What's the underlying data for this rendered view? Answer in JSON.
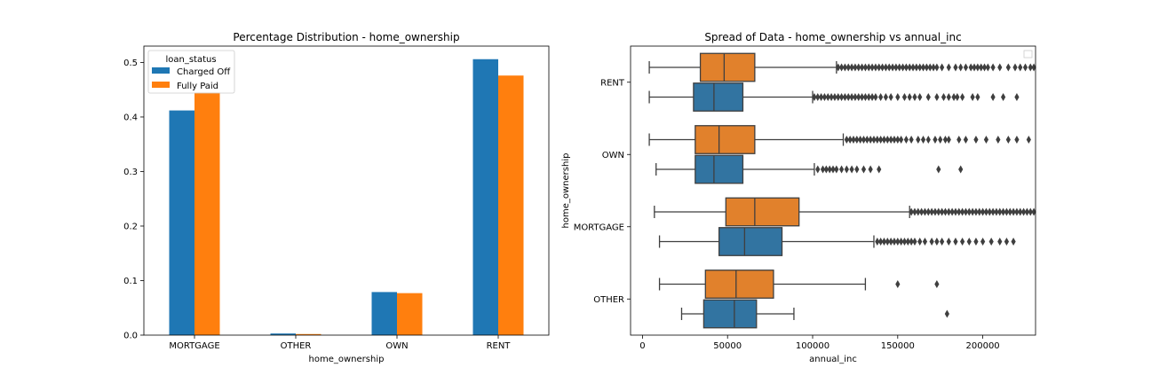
{
  "colors": {
    "charged_off": "#1f77b4",
    "fully_paid": "#ff7f0e",
    "box_charged_off": "#3274a1",
    "box_fully_paid": "#e1812c",
    "box_line": "#3f3f3f",
    "axes": "#000000"
  },
  "chart_data": [
    {
      "type": "bar",
      "title": "Percentage Distribution - home_ownership",
      "xlabel": "home_ownership",
      "ylabel": "",
      "ylim": [
        0,
        0.53
      ],
      "yticks": [
        0.0,
        0.1,
        0.2,
        0.3,
        0.4,
        0.5
      ],
      "ytick_labels": [
        "0.0",
        "0.1",
        "0.2",
        "0.3",
        "0.4",
        "0.5"
      ],
      "categories": [
        "MORTGAGE",
        "OTHER",
        "OWN",
        "RENT"
      ],
      "legend": {
        "title": "loan_status",
        "placement": "upper left"
      },
      "grid": false,
      "series": [
        {
          "name": "Charged Off",
          "color": "#1f77b4",
          "values": [
            0.412,
            0.003,
            0.079,
            0.506
          ]
        },
        {
          "name": "Fully Paid",
          "color": "#ff7f0e",
          "values": [
            0.445,
            0.002,
            0.077,
            0.476
          ]
        }
      ]
    },
    {
      "type": "box",
      "title": "Spread of Data - home_ownership vs annual_inc",
      "xlabel": "annual_inc",
      "ylabel": "home_ownership",
      "xlim": [
        -7000,
        231000
      ],
      "xticks": [
        0,
        50000,
        100000,
        150000,
        200000
      ],
      "xtick_labels": [
        "0",
        "50000",
        "100000",
        "150000",
        "200000"
      ],
      "categories": [
        "RENT",
        "OWN",
        "MORTGAGE",
        "OTHER"
      ],
      "legend": {
        "placement": "upper right",
        "entries": []
      },
      "grid": false,
      "series": [
        {
          "name": "Fully Paid",
          "color": "#e1812c",
          "boxes": [
            {
              "category": "RENT",
              "whisker_low": 4000,
              "q1": 34000,
              "median": 48000,
              "q3": 66000,
              "whisker_high": 114000,
              "outliers": [
                115000,
                117000,
                119000,
                121000,
                123000,
                125000,
                127000,
                129000,
                131000,
                133000,
                135000,
                137000,
                139000,
                141000,
                143000,
                145000,
                147000,
                149000,
                151000,
                153000,
                155000,
                157000,
                159000,
                161000,
                163000,
                165000,
                167000,
                169000,
                171000,
                173000,
                176000,
                180000,
                184000,
                187000,
                190000,
                193000,
                195000,
                197000,
                199000,
                201000,
                203000,
                206000,
                210000,
                215000,
                219000,
                222000,
                225000,
                228000,
                230000
              ]
            },
            {
              "category": "OWN",
              "whisker_low": 4000,
              "q1": 31000,
              "median": 45000,
              "q3": 66000,
              "whisker_high": 118000,
              "outliers": [
                120000,
                122000,
                124000,
                126000,
                128000,
                130000,
                132000,
                134000,
                136000,
                138000,
                140000,
                142000,
                144000,
                146000,
                148000,
                150000,
                152000,
                155000,
                158000,
                162000,
                165000,
                168000,
                172000,
                175000,
                178000,
                180000,
                186000,
                190000,
                196000,
                202000,
                209000,
                215000,
                220000,
                227000
              ]
            },
            {
              "category": "MORTGAGE",
              "whisker_low": 7000,
              "q1": 49000,
              "median": 66000,
              "q3": 92000,
              "whisker_high": 157000,
              "outliers": [
                158000,
                160000,
                162000,
                164000,
                166000,
                168000,
                170000,
                172000,
                174000,
                176000,
                178000,
                180000,
                182000,
                184000,
                186000,
                188000,
                190000,
                192000,
                194000,
                196000,
                198000,
                200000,
                202000,
                204000,
                206000,
                208000,
                210000,
                212000,
                214000,
                216000,
                218000,
                220000,
                222000,
                224000,
                226000,
                228000,
                230000
              ]
            },
            {
              "category": "OTHER",
              "whisker_low": 10000,
              "q1": 37000,
              "median": 55000,
              "q3": 77000,
              "whisker_high": 131000,
              "outliers": [
                150000,
                173000
              ]
            }
          ]
        },
        {
          "name": "Charged Off",
          "color": "#3274a1",
          "boxes": [
            {
              "category": "RENT",
              "whisker_low": 4000,
              "q1": 30000,
              "median": 42000,
              "q3": 59000,
              "whisker_high": 100000,
              "outliers": [
                101000,
                103000,
                105000,
                107000,
                109000,
                111000,
                113000,
                115000,
                117000,
                119000,
                121000,
                123000,
                125000,
                127000,
                129000,
                131000,
                133000,
                135000,
                137000,
                140000,
                143000,
                146000,
                150000,
                154000,
                157000,
                160000,
                163000,
                168000,
                173000,
                177000,
                180000,
                183000,
                185000,
                188000,
                194000,
                197000,
                206000,
                212000,
                220000
              ]
            },
            {
              "category": "OWN",
              "whisker_low": 8000,
              "q1": 31000,
              "median": 42000,
              "q3": 59000,
              "whisker_high": 101000,
              "outliers": [
                103000,
                106000,
                108000,
                110000,
                112000,
                114000,
                117000,
                120000,
                123000,
                126000,
                130000,
                134000,
                139000,
                174000,
                187000
              ]
            },
            {
              "category": "MORTGAGE",
              "whisker_low": 10000,
              "q1": 45000,
              "median": 60000,
              "q3": 82000,
              "whisker_high": 136000,
              "outliers": [
                138000,
                140000,
                142000,
                144000,
                146000,
                148000,
                150000,
                152000,
                154000,
                156000,
                158000,
                160000,
                163000,
                166000,
                170000,
                173000,
                176000,
                180000,
                184000,
                188000,
                192000,
                196000,
                200000,
                205000,
                210000,
                214000,
                218000
              ]
            },
            {
              "category": "OTHER",
              "whisker_low": 23000,
              "q1": 36000,
              "median": 54000,
              "q3": 67000,
              "whisker_high": 89000,
              "outliers": [
                179000
              ]
            }
          ]
        }
      ]
    }
  ]
}
